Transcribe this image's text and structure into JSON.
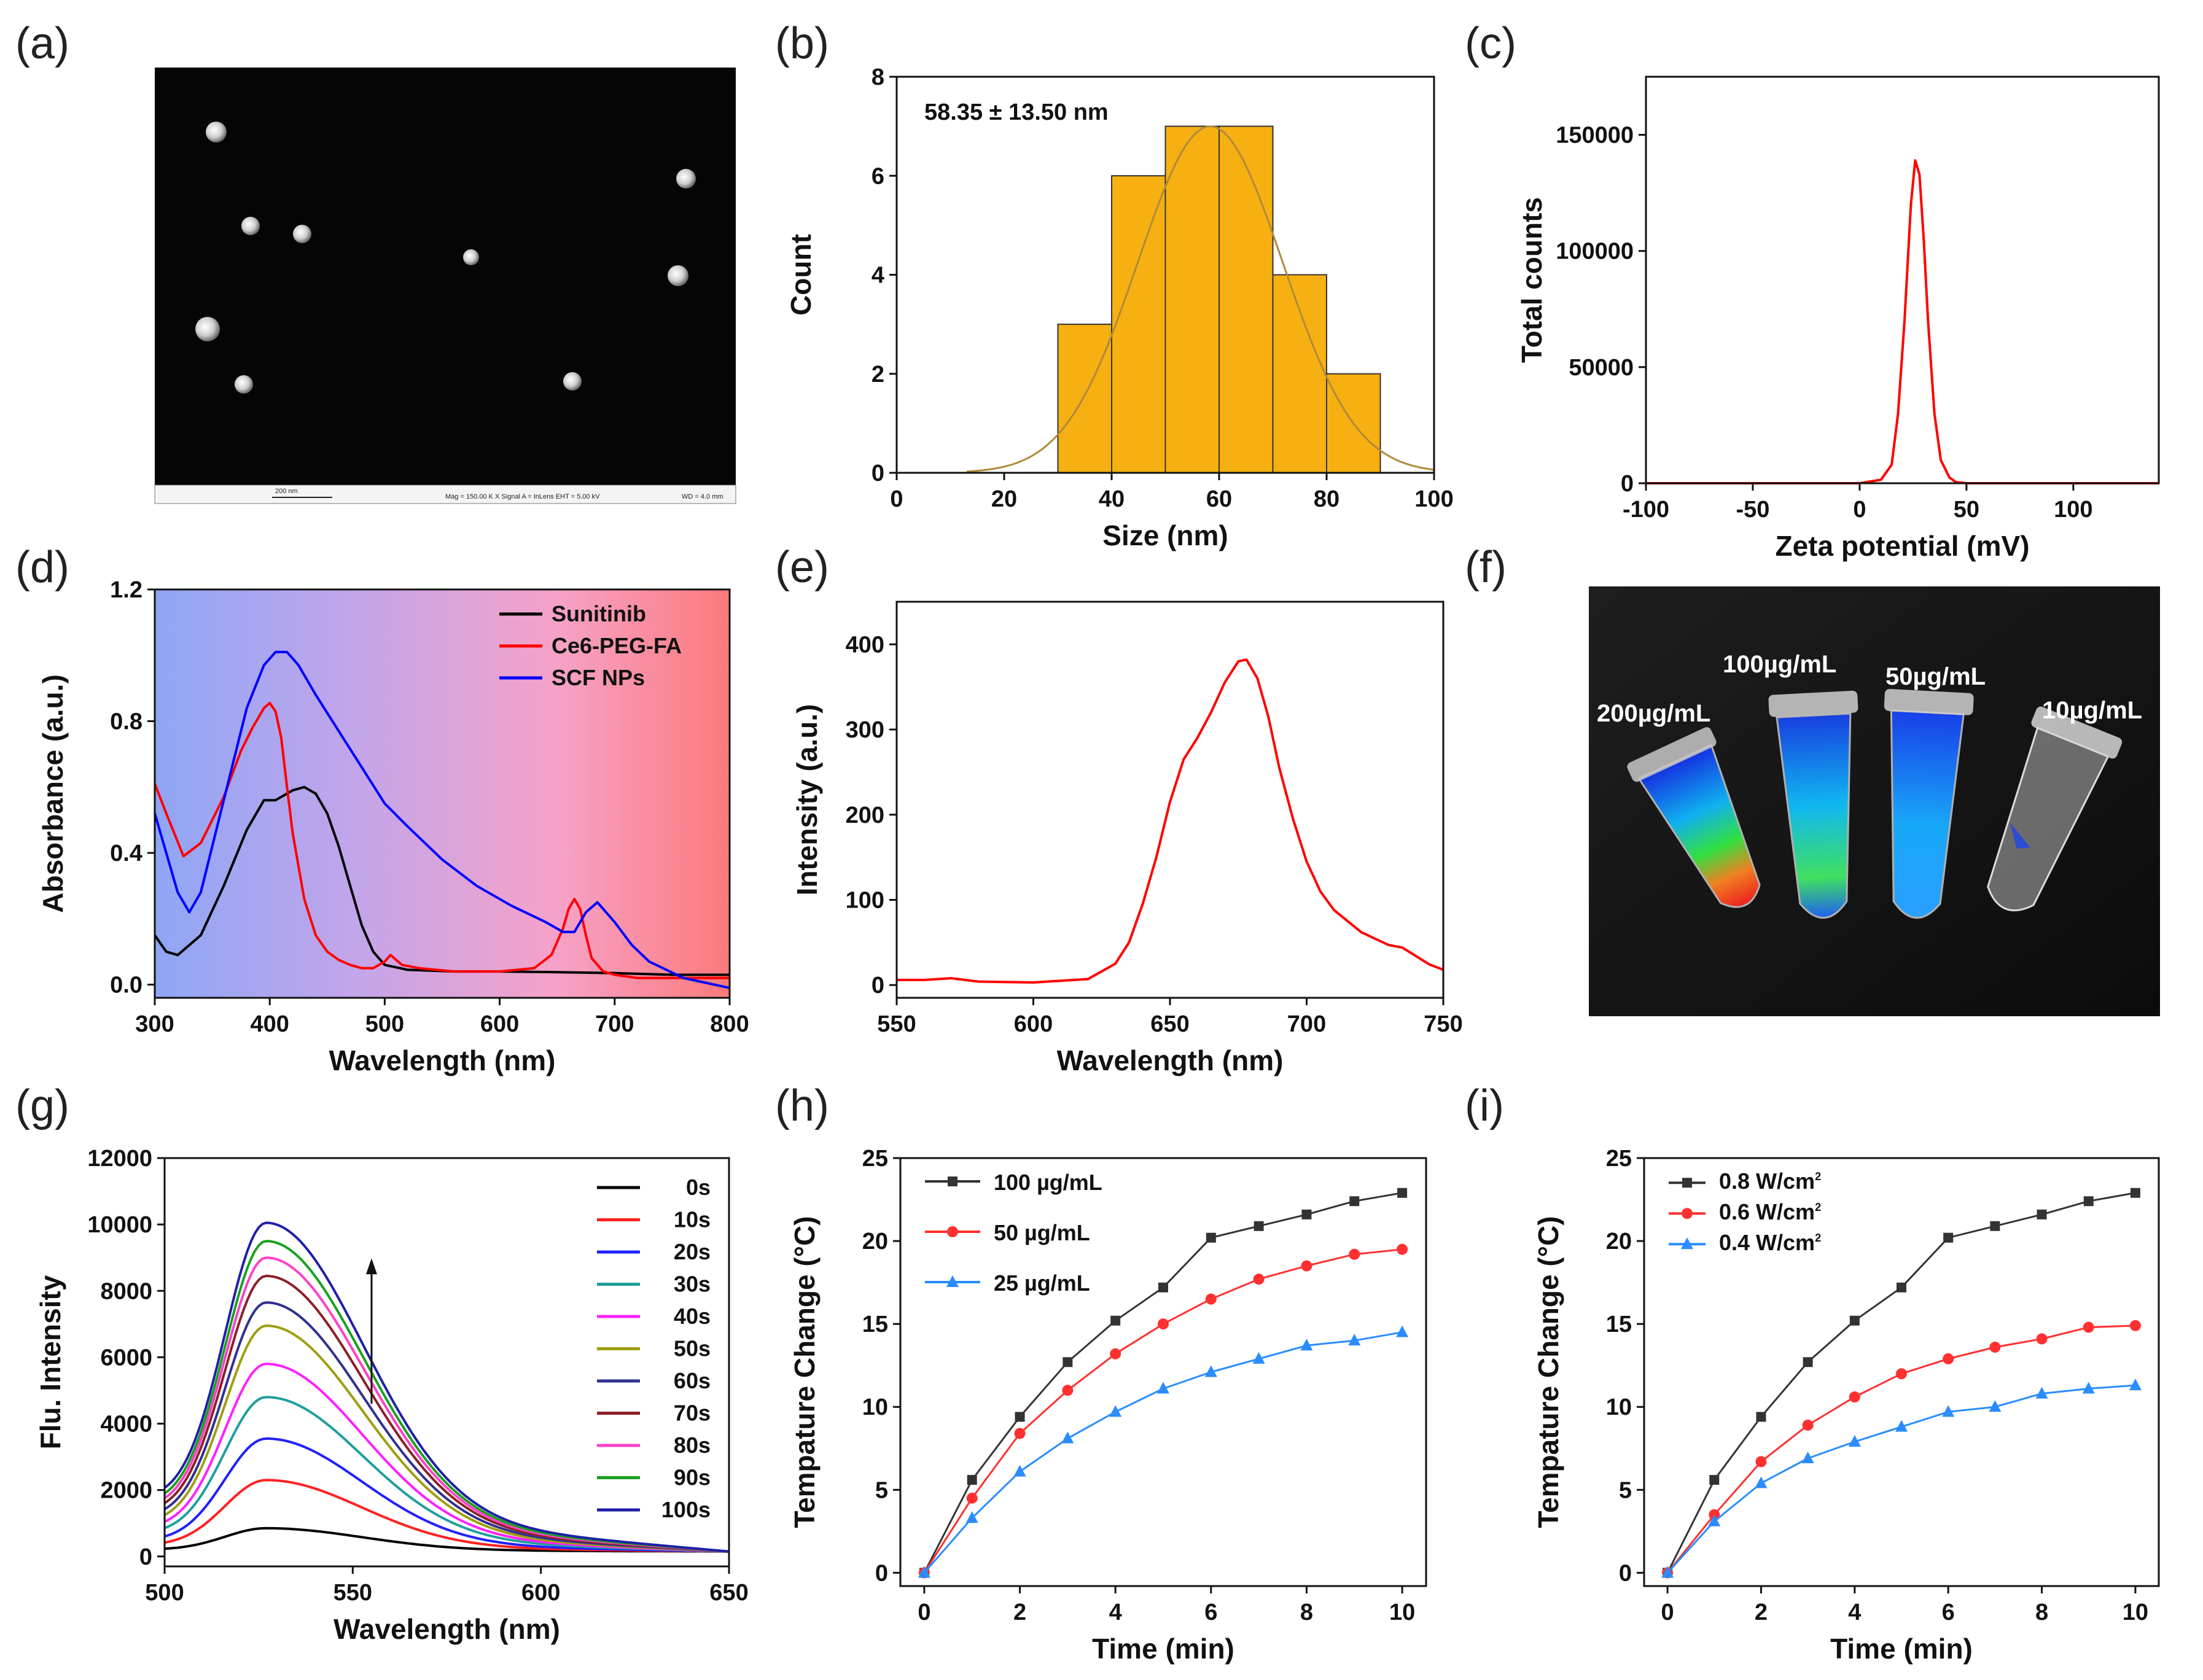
{
  "panel_labels": [
    "(a)",
    "(b)",
    "(c)",
    "(d)",
    "(e)",
    "(f)",
    "(g)",
    "(h)",
    "(i)"
  ],
  "sem_image": {
    "scale_bar_label": "200 nm",
    "info": "Mag = 150.00 K X   Signal A = InLens   EHT = 5.00 kV",
    "wd": "WD = 4.0 mm"
  },
  "fluorescence_image": {
    "tube_labels": [
      "200µg/mL",
      "100µg/mL",
      "50µg/mL",
      "10µg/mL"
    ]
  },
  "chart_data": [
    {
      "id": "b",
      "type": "bar",
      "title": "",
      "annotation": "58.35 ± 13.50 nm",
      "xlabel": "Size (nm)",
      "ylabel": "Count",
      "xlim": [
        0,
        100
      ],
      "ylim": [
        0,
        8
      ],
      "xticks": [
        0,
        20,
        40,
        60,
        80,
        100
      ],
      "yticks": [
        0,
        2,
        4,
        6,
        8
      ],
      "bins": [
        [
          30,
          40
        ],
        [
          40,
          50
        ],
        [
          50,
          60
        ],
        [
          60,
          70
        ],
        [
          70,
          80
        ],
        [
          80,
          90
        ]
      ],
      "values": [
        3,
        6,
        7,
        7,
        4,
        2
      ],
      "fit": {
        "type": "gaussian",
        "mean": 58.35,
        "sd": 13.5,
        "peak": 7.0
      },
      "colors": {
        "bar": "#f7b011",
        "fit": "#b08a3a"
      }
    },
    {
      "id": "c",
      "type": "line",
      "xlabel": "Zeta potential (mV)",
      "ylabel": "Total counts",
      "xlim": [
        -100,
        140
      ],
      "ylim": [
        0,
        175000
      ],
      "xticks": [
        -100,
        -50,
        0,
        50,
        100
      ],
      "yticks": [
        0,
        50000,
        100000,
        150000
      ],
      "series": [
        {
          "name": "zeta",
          "color": "#ff0000",
          "x": [
            -100,
            0,
            10,
            15,
            18,
            21,
            24,
            26,
            28,
            30,
            32,
            35,
            38,
            42,
            45,
            50,
            140
          ],
          "y": [
            0,
            0,
            1500,
            8000,
            30000,
            70000,
            120000,
            139000,
            133000,
            105000,
            70000,
            30000,
            10000,
            2500,
            500,
            0,
            0
          ]
        }
      ]
    },
    {
      "id": "d",
      "type": "line",
      "xlabel": "Wavelength (nm)",
      "ylabel": "Absorbance (a.u.)",
      "xlim": [
        300,
        800
      ],
      "ylim": [
        -0.04,
        1.2
      ],
      "xticks": [
        300,
        400,
        500,
        600,
        700,
        800
      ],
      "yticks": [
        0.0,
        0.4,
        0.8,
        1.2
      ],
      "background_gradient": [
        "#8ea6f5",
        "#c3a5ea",
        "#f6a2c8",
        "#fb7a7a"
      ],
      "series": [
        {
          "name": "Sunitinib",
          "color": "#000000",
          "x": [
            300,
            310,
            320,
            340,
            360,
            380,
            395,
            405,
            420,
            430,
            440,
            450,
            460,
            470,
            480,
            490,
            500,
            520,
            560,
            600,
            650,
            700,
            750,
            800
          ],
          "y": [
            0.15,
            0.1,
            0.09,
            0.15,
            0.3,
            0.47,
            0.56,
            0.56,
            0.59,
            0.6,
            0.58,
            0.52,
            0.42,
            0.3,
            0.18,
            0.1,
            0.06,
            0.045,
            0.04,
            0.04,
            0.038,
            0.035,
            0.03,
            0.03
          ]
        },
        {
          "name": "Ce6-PEG-FA",
          "color": "#ff0000",
          "x": [
            300,
            310,
            325,
            340,
            360,
            375,
            385,
            395,
            400,
            405,
            410,
            415,
            420,
            430,
            440,
            450,
            460,
            470,
            480,
            490,
            500,
            505,
            515,
            530,
            560,
            600,
            630,
            645,
            655,
            660,
            665,
            670,
            675,
            680,
            690,
            700,
            720,
            760,
            800
          ],
          "y": [
            0.61,
            0.52,
            0.39,
            0.43,
            0.57,
            0.71,
            0.78,
            0.84,
            0.855,
            0.83,
            0.75,
            0.6,
            0.46,
            0.26,
            0.15,
            0.1,
            0.075,
            0.06,
            0.05,
            0.05,
            0.07,
            0.09,
            0.06,
            0.05,
            0.04,
            0.04,
            0.05,
            0.09,
            0.17,
            0.23,
            0.26,
            0.23,
            0.15,
            0.08,
            0.04,
            0.03,
            0.02,
            0.02,
            0.02
          ]
        },
        {
          "name": "SCF NPs",
          "color": "#0000ff",
          "x": [
            300,
            310,
            320,
            330,
            340,
            360,
            380,
            395,
            405,
            415,
            425,
            440,
            460,
            480,
            500,
            520,
            550,
            580,
            610,
            640,
            655,
            665,
            675,
            685,
            700,
            715,
            730,
            760,
            800
          ],
          "y": [
            0.52,
            0.4,
            0.28,
            0.22,
            0.28,
            0.56,
            0.84,
            0.97,
            1.01,
            1.01,
            0.97,
            0.88,
            0.77,
            0.66,
            0.55,
            0.48,
            0.38,
            0.3,
            0.24,
            0.19,
            0.16,
            0.16,
            0.22,
            0.25,
            0.19,
            0.12,
            0.07,
            0.02,
            -0.01
          ]
        }
      ],
      "legend": {
        "placement": "top-right"
      }
    },
    {
      "id": "e",
      "type": "line",
      "xlabel": "Wavelength (nm)",
      "ylabel": "Intensity (a.u.)",
      "xlim": [
        550,
        750
      ],
      "ylim": [
        -15,
        450
      ],
      "xticks": [
        550,
        600,
        650,
        700,
        750
      ],
      "yticks": [
        0,
        100,
        200,
        300,
        400
      ],
      "series": [
        {
          "name": "emission",
          "color": "#ff0000",
          "x": [
            550,
            560,
            570,
            580,
            600,
            620,
            630,
            635,
            640,
            645,
            650,
            655,
            660,
            665,
            670,
            675,
            678,
            682,
            686,
            690,
            695,
            700,
            705,
            710,
            720,
            730,
            735,
            740,
            745,
            750
          ],
          "y": [
            6,
            6,
            8,
            4,
            3,
            7,
            25,
            50,
            95,
            150,
            215,
            265,
            290,
            320,
            355,
            380,
            382,
            360,
            315,
            255,
            195,
            145,
            110,
            88,
            62,
            47,
            44,
            34,
            24,
            18
          ]
        }
      ]
    },
    {
      "id": "g",
      "type": "line",
      "xlabel": "Wavelength (nm)",
      "ylabel": "Flu. Intensity",
      "xlim": [
        500,
        650
      ],
      "ylim": [
        -300,
        12000
      ],
      "xticks": [
        500,
        550,
        600,
        650
      ],
      "yticks": [
        0,
        2000,
        4000,
        6000,
        8000,
        10000,
        12000
      ],
      "peak_x": 527,
      "series": [
        {
          "name": "0s",
          "color": "#000000",
          "peak": 850,
          "base": 200
        },
        {
          "name": "10s",
          "color": "#ff2020",
          "peak": 2300,
          "base": 320
        },
        {
          "name": "20s",
          "color": "#2020ff",
          "peak": 3550,
          "base": 450
        },
        {
          "name": "30s",
          "color": "#1f9e9e",
          "peak": 4800,
          "base": 650
        },
        {
          "name": "40s",
          "color": "#ff20ff",
          "peak": 5800,
          "base": 800
        },
        {
          "name": "50s",
          "color": "#9e9e10",
          "peak": 6950,
          "base": 950
        },
        {
          "name": "60s",
          "color": "#30308f",
          "peak": 7650,
          "base": 1100
        },
        {
          "name": "70s",
          "color": "#8c1f28",
          "peak": 8450,
          "base": 1250
        },
        {
          "name": "80s",
          "color": "#ff40c8",
          "peak": 9000,
          "base": 1380
        },
        {
          "name": "90s",
          "color": "#1aa020",
          "peak": 9500,
          "base": 1500
        },
        {
          "name": "100s",
          "color": "#1f1fa8",
          "peak": 10050,
          "base": 1650
        }
      ],
      "legend": {
        "placement": "top-right"
      }
    },
    {
      "id": "h",
      "type": "line",
      "xlabel": "Time (min)",
      "ylabel": "Tempature Change (°C)",
      "xlim": [
        -0.5,
        10.5
      ],
      "ylim": [
        -0.8,
        25
      ],
      "xticks": [
        0,
        2,
        4,
        6,
        8,
        10
      ],
      "yticks": [
        0,
        5,
        10,
        15,
        20,
        25
      ],
      "x": [
        0,
        1,
        2,
        3,
        4,
        5,
        6,
        7,
        8,
        9,
        10
      ],
      "series": [
        {
          "name": "100 µg/mL",
          "color": "#333333",
          "marker": "square",
          "values": [
            0,
            5.6,
            9.4,
            12.7,
            15.2,
            17.2,
            20.2,
            20.9,
            21.6,
            22.4,
            22.9
          ]
        },
        {
          "name": "50 µg/mL",
          "color": "#ff3030",
          "marker": "circle",
          "values": [
            0,
            4.5,
            8.4,
            11.0,
            13.2,
            15.0,
            16.5,
            17.7,
            18.5,
            19.2,
            19.5
          ]
        },
        {
          "name": "25 µg/mL",
          "color": "#2a8cff",
          "marker": "triangle",
          "values": [
            0,
            3.3,
            6.1,
            8.1,
            9.7,
            11.1,
            12.1,
            12.9,
            13.7,
            14.0,
            14.5
          ]
        }
      ],
      "legend": {
        "placement": "top-left"
      }
    },
    {
      "id": "i",
      "type": "line",
      "xlabel": "Time (min)",
      "ylabel": "Tempature Change (°C)",
      "xlim": [
        -0.5,
        10.5
      ],
      "ylim": [
        -0.8,
        25
      ],
      "xticks": [
        0,
        2,
        4,
        6,
        8,
        10
      ],
      "yticks": [
        0,
        5,
        10,
        15,
        20,
        25
      ],
      "x": [
        0,
        1,
        2,
        3,
        4,
        5,
        6,
        7,
        8,
        9,
        10
      ],
      "series": [
        {
          "name": "0.8 W/cm",
          "sup": "2",
          "color": "#333333",
          "marker": "square",
          "values": [
            0,
            5.6,
            9.4,
            12.7,
            15.2,
            17.2,
            20.2,
            20.9,
            21.6,
            22.4,
            22.9
          ]
        },
        {
          "name": "0.6 W/cm",
          "sup": "2",
          "color": "#ff3030",
          "marker": "circle",
          "values": [
            0,
            3.5,
            6.7,
            8.9,
            10.6,
            12.0,
            12.9,
            13.6,
            14.1,
            14.8,
            14.9
          ]
        },
        {
          "name": "0.4 W/cm",
          "sup": "2",
          "color": "#2a8cff",
          "marker": "triangle",
          "values": [
            0,
            3.1,
            5.4,
            6.9,
            7.9,
            8.8,
            9.7,
            10.0,
            10.8,
            11.1,
            11.3
          ]
        }
      ],
      "legend": {
        "placement": "top-left"
      }
    }
  ]
}
